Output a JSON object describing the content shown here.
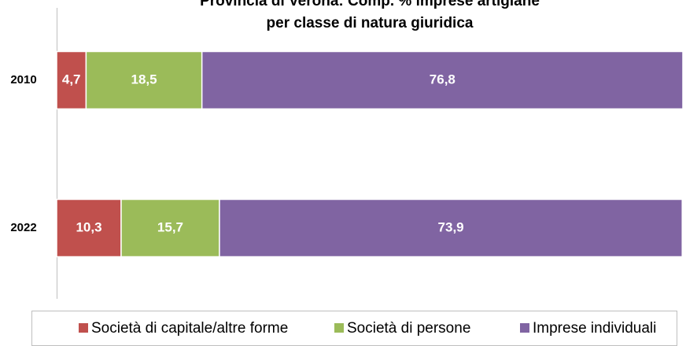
{
  "chart_data": {
    "type": "stacked_barh",
    "title": "Provincia di Verona: Comp. % imprese artigiane",
    "subtitle": "per classe di natura giuridica",
    "categories": [
      "2010",
      "2022"
    ],
    "series": [
      {
        "name": "Società di capitale/altre forme",
        "color": "#c0504d",
        "values": [
          4.7,
          10.3
        ],
        "value_labels": [
          "4,7",
          "10,3"
        ]
      },
      {
        "name": "Società di persone",
        "color": "#9bbb59",
        "values": [
          18.5,
          15.7
        ],
        "value_labels": [
          "18,5",
          "15,7"
        ]
      },
      {
        "name": "Imprese individuali",
        "color": "#8064a2",
        "values": [
          76.8,
          73.9
        ],
        "value_labels": [
          "76,8",
          "73,9"
        ]
      }
    ],
    "xlim": [
      0,
      100
    ],
    "legend": "bottom"
  }
}
